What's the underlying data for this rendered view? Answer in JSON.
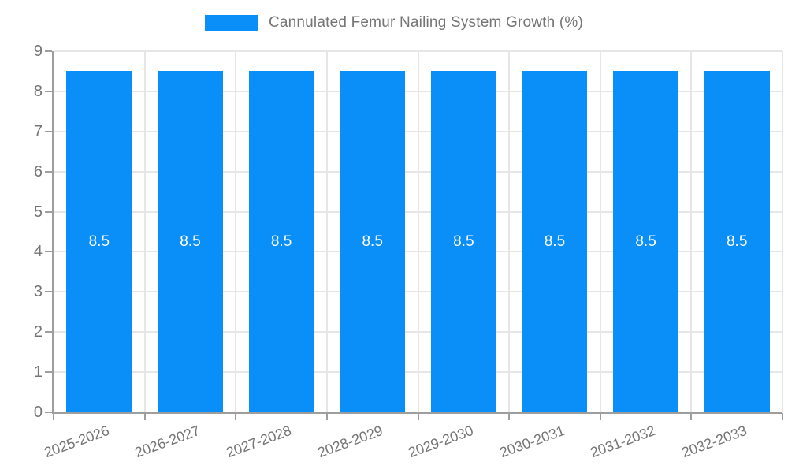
{
  "chart": {
    "colors": {
      "bar": "#0a8ef8",
      "bar_label": "#ffffff",
      "grid": "#e6e6e6",
      "axis": "#9e9e9e",
      "text": "#757575"
    }
  },
  "chart_data": {
    "type": "bar",
    "title": "Cannulated Femur Nailing System Growth (%)",
    "categories": [
      "2025-2026",
      "2026-2027",
      "2027-2028",
      "2028-2029",
      "2029-2030",
      "2030-2031",
      "2031-2032",
      "2032-2033"
    ],
    "values": [
      8.5,
      8.5,
      8.5,
      8.5,
      8.5,
      8.5,
      8.5,
      8.5
    ],
    "value_labels": [
      "8.5",
      "8.5",
      "8.5",
      "8.5",
      "8.5",
      "8.5",
      "8.5",
      "8.5"
    ],
    "xlabel": "",
    "ylabel": "",
    "ylim": [
      0,
      9
    ],
    "yticks": [
      0,
      1,
      2,
      3,
      4,
      5,
      6,
      7,
      8,
      9
    ],
    "grid": true,
    "legend_position": "top",
    "legend_entries": [
      "Cannulated Femur Nailing System Growth (%)"
    ]
  }
}
